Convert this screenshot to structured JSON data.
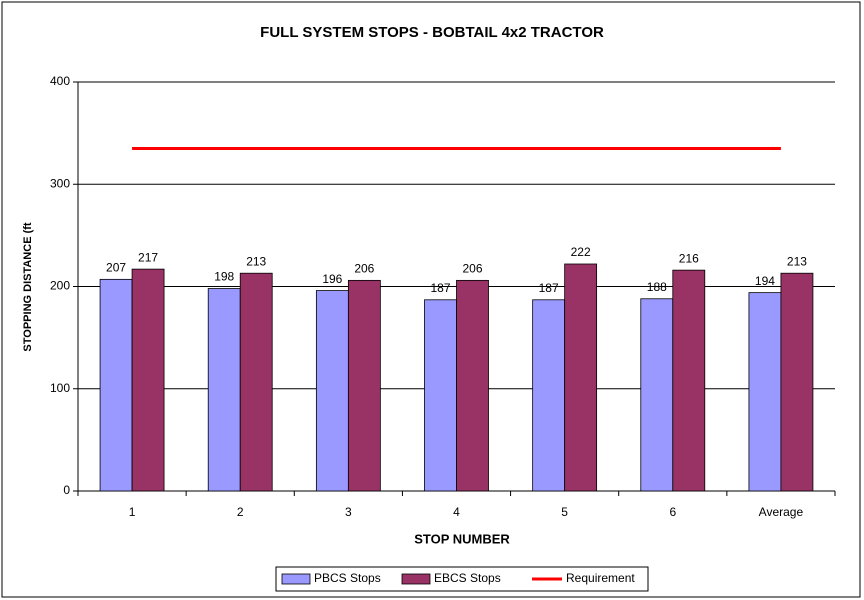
{
  "chart_data": {
    "type": "bar",
    "title": "FULL SYSTEM STOPS - BOBTAIL 4x2 TRACTOR",
    "x_label": "STOP NUMBER",
    "y_label": "STOPPING DISTANCE (ft",
    "categories": [
      "1",
      "2",
      "3",
      "4",
      "5",
      "6",
      "Average"
    ],
    "series": [
      {
        "name": "PBCS Stops",
        "type": "bar",
        "color": "#9999ff",
        "values": [
          207,
          198,
          196,
          187,
          187,
          188,
          194
        ]
      },
      {
        "name": "EBCS Stops",
        "type": "bar",
        "color": "#993366",
        "values": [
          217,
          213,
          206,
          206,
          222,
          216,
          213
        ]
      },
      {
        "name": "Requirement",
        "type": "line",
        "color": "#ff0000",
        "values": [
          335,
          335,
          335,
          335,
          335,
          335,
          335
        ]
      }
    ],
    "ylim": [
      0,
      400
    ],
    "yticks": [
      0,
      100,
      200,
      300,
      400
    ],
    "grid": true,
    "legend": "bottom"
  }
}
